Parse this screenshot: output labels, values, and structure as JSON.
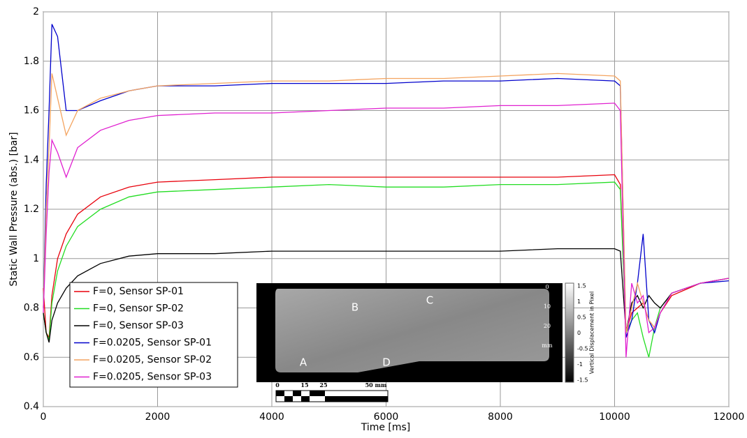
{
  "chart_data": {
    "type": "line",
    "x_label": "Time [ms]",
    "y_label": "Static Wall Pressure (abs.) [bar]",
    "x": [
      0,
      50,
      100,
      150,
      250,
      400,
      600,
      1000,
      1500,
      2000,
      3000,
      4000,
      5000,
      6000,
      7000,
      8000,
      9000,
      10000,
      10100,
      10200,
      10300,
      10400,
      10500,
      10600,
      10700,
      10800,
      11000,
      11500,
      12000
    ],
    "series": [
      {
        "name": "F=0, Sensor SP-01",
        "color": "#e8000b",
        "values": [
          0.88,
          0.7,
          0.68,
          0.85,
          1.0,
          1.1,
          1.18,
          1.25,
          1.29,
          1.31,
          1.32,
          1.33,
          1.33,
          1.33,
          1.33,
          1.33,
          1.33,
          1.34,
          1.3,
          0.7,
          0.78,
          0.8,
          0.82,
          0.75,
          0.72,
          0.78,
          0.85,
          0.9,
          0.92
        ]
      },
      {
        "name": "F=0, Sensor SP-02",
        "color": "#22dd22",
        "values": [
          0.78,
          0.7,
          0.67,
          0.82,
          0.95,
          1.05,
          1.13,
          1.2,
          1.25,
          1.27,
          1.28,
          1.29,
          1.3,
          1.29,
          1.29,
          1.3,
          1.3,
          1.31,
          1.28,
          0.7,
          0.75,
          0.78,
          0.68,
          0.6,
          0.72,
          0.8,
          0.86,
          0.9,
          0.92
        ]
      },
      {
        "name": "F=0, Sensor SP-03",
        "color": "#000000",
        "values": [
          0.78,
          0.7,
          0.66,
          0.75,
          0.82,
          0.88,
          0.93,
          0.98,
          1.01,
          1.02,
          1.02,
          1.03,
          1.03,
          1.03,
          1.03,
          1.03,
          1.04,
          1.04,
          1.03,
          0.7,
          0.82,
          0.85,
          0.8,
          0.85,
          0.82,
          0.8,
          0.86,
          0.9,
          0.92
        ]
      },
      {
        "name": "F=0.0205, Sensor SP-01",
        "color": "#0000cc",
        "values": [
          0.8,
          1.3,
          1.6,
          1.95,
          1.9,
          1.6,
          1.6,
          1.64,
          1.68,
          1.7,
          1.7,
          1.71,
          1.71,
          1.71,
          1.72,
          1.72,
          1.73,
          1.72,
          1.7,
          0.68,
          0.75,
          0.9,
          1.1,
          0.75,
          0.7,
          0.78,
          0.86,
          0.9,
          0.91
        ]
      },
      {
        "name": "F=0.0205, Sensor SP-02",
        "color": "#f4a460",
        "values": [
          0.8,
          1.2,
          1.45,
          1.75,
          1.65,
          1.5,
          1.6,
          1.65,
          1.68,
          1.7,
          1.71,
          1.72,
          1.72,
          1.73,
          1.73,
          1.74,
          1.75,
          1.74,
          1.72,
          0.7,
          0.8,
          0.9,
          0.82,
          0.75,
          0.72,
          0.78,
          0.86,
          0.9,
          0.92
        ]
      },
      {
        "name": "F=0.0205, Sensor SP-03",
        "color": "#e020d0",
        "values": [
          0.78,
          1.1,
          1.35,
          1.48,
          1.43,
          1.33,
          1.45,
          1.52,
          1.56,
          1.58,
          1.59,
          1.59,
          1.6,
          1.61,
          1.61,
          1.62,
          1.62,
          1.63,
          1.6,
          0.6,
          0.9,
          0.82,
          0.85,
          0.7,
          0.72,
          0.78,
          0.86,
          0.9,
          0.92
        ]
      }
    ],
    "xlim": [
      0,
      12000
    ],
    "xticks": [
      0,
      2000,
      4000,
      6000,
      8000,
      10000,
      12000
    ],
    "ylim": [
      0.4,
      2
    ],
    "yticks": [
      0.4,
      0.6,
      0.8,
      1,
      1.2,
      1.4,
      1.6,
      1.8,
      2
    ],
    "grid": true,
    "legend": "lower left"
  },
  "inset": {
    "points": [
      "B",
      "C",
      "A",
      "D"
    ],
    "colorbar_ticks": [
      "1.5",
      "1",
      "0.5",
      "0",
      "-0.5",
      "-1",
      "-1.5"
    ],
    "colorbar_label": "Vertical Displacement in Pixel",
    "ruler_ticks": [
      "0",
      "10",
      "20",
      "mm"
    ],
    "scale_ticks": [
      "0",
      "15",
      "25",
      "50 mm"
    ]
  }
}
